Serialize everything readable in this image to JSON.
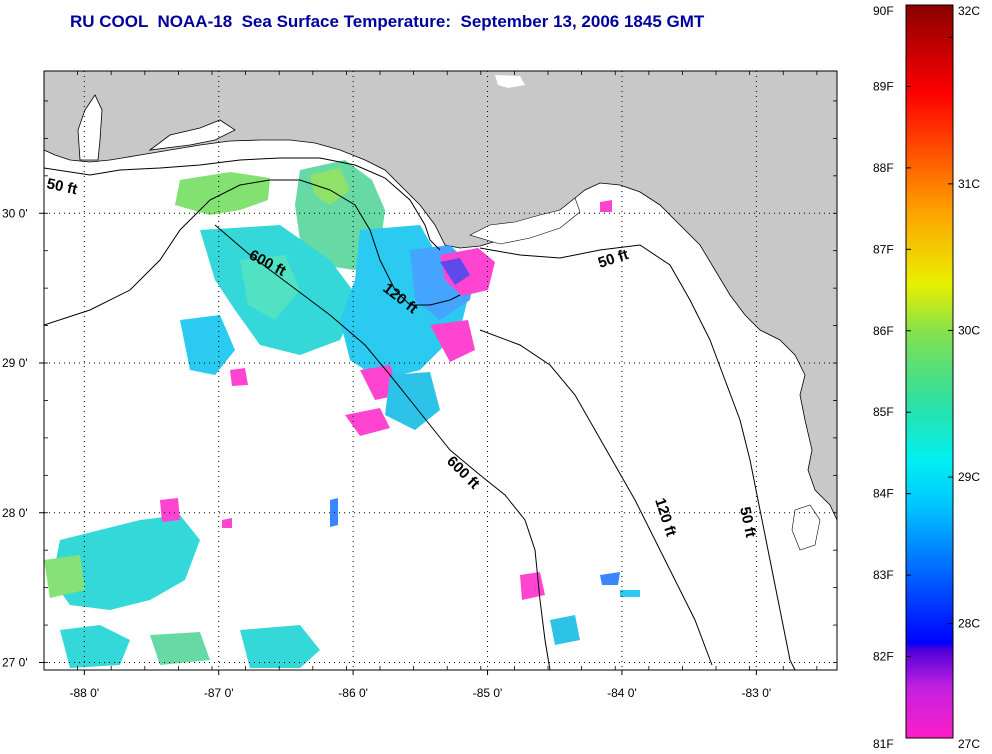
{
  "title": "RU COOL  NOAA-18  Sea Surface Temperature:  September 13, 2006 1845 GMT",
  "map": {
    "lon_range": [
      -88.3,
      -82.4
    ],
    "lat_range": [
      26.95,
      30.95
    ],
    "lon_ticks": [
      {
        "value": -88,
        "label": "-88 0'"
      },
      {
        "value": -87,
        "label": "-87 0'"
      },
      {
        "value": -86,
        "label": "-86 0'"
      },
      {
        "value": -85,
        "label": "-85 0'"
      },
      {
        "value": -84,
        "label": "-84 0'"
      },
      {
        "value": -83,
        "label": "-83 0'"
      }
    ],
    "lat_ticks": [
      {
        "value": 30,
        "label": "30 0'"
      },
      {
        "value": 29,
        "label": "29 0'"
      },
      {
        "value": 28,
        "label": "28 0'"
      },
      {
        "value": 27,
        "label": "27 0'"
      }
    ],
    "contour_labels": [
      "50 ft",
      "600 ft",
      "120 ft",
      "50 ft",
      "600 ft",
      "120 ft",
      "50 ft"
    ],
    "land_color": "#c8c8c8",
    "water_color": "#ffffff"
  },
  "colorbar": {
    "fahrenheit_labels": [
      "90F",
      "89F",
      "88F",
      "87F",
      "86F",
      "85F",
      "84F",
      "83F",
      "82F",
      "81F"
    ],
    "celsius_labels": [
      "32C",
      "31C",
      "30C",
      "29C",
      "28C",
      "27C"
    ],
    "range_f": [
      81,
      90
    ],
    "range_c": [
      27.22,
      32.22
    ]
  }
}
